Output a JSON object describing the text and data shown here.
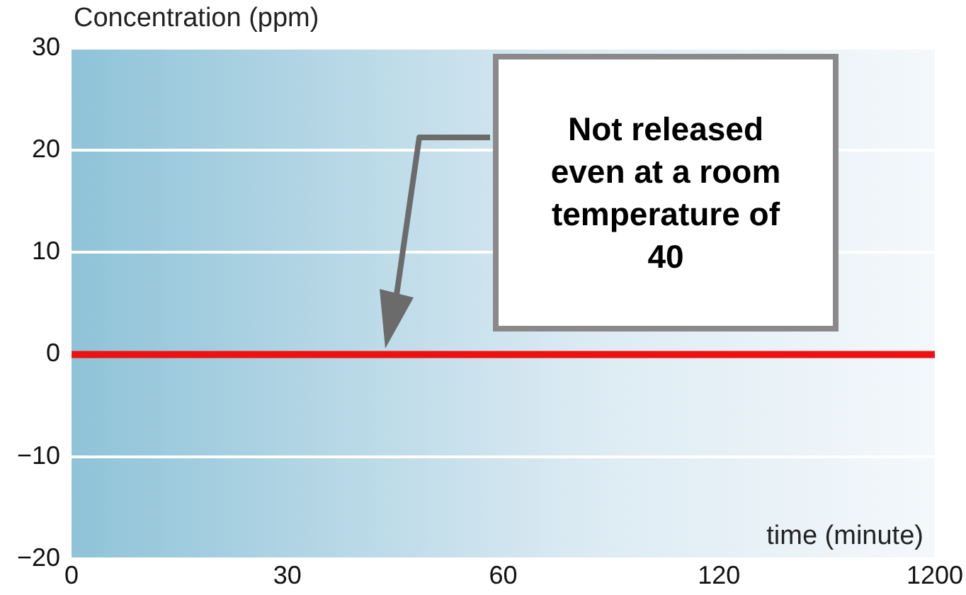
{
  "chart_data": {
    "type": "line",
    "xlabel": "time (minute)",
    "ylabel": "Concentration (ppm)",
    "categories": [
      "0",
      "30",
      "60",
      "120",
      "1200"
    ],
    "series": [
      {
        "color": "#ee1111",
        "values": [
          0,
          0,
          0,
          0,
          0
        ]
      }
    ],
    "ylim": [
      -20,
      30
    ],
    "yticks": [
      -20,
      -10,
      0,
      10,
      20,
      30
    ],
    "grid": "y",
    "legend": false,
    "marker": "none",
    "line_style": "solid",
    "annotations": [
      "Not released even at a room temperature of 40"
    ]
  }
}
